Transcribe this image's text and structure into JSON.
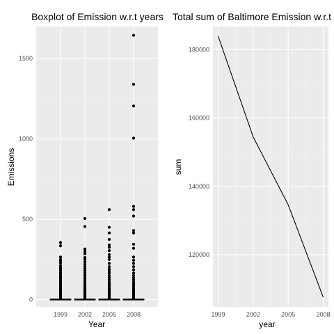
{
  "chart_data": [
    {
      "type": "box",
      "title": "Boxplot of Emission w.r.t years",
      "xlabel": "Year",
      "ylabel": "Emissions",
      "categories": [
        "1999",
        "2002",
        "2005",
        "2008"
      ],
      "ylim": [
        -45,
        1700
      ],
      "yticks": [
        0,
        500,
        1000,
        1500
      ],
      "ytick_labels": [
        "0",
        "500",
        "1000",
        "1500"
      ],
      "grid": true,
      "boxes": [
        {
          "label": "1999",
          "q1": 0,
          "median": 0.5,
          "q3": 3,
          "whisker_low": 0,
          "whisker_high": 7
        },
        {
          "label": "2002",
          "q1": 0,
          "median": 0.5,
          "q3": 3,
          "whisker_low": 0,
          "whisker_high": 7
        },
        {
          "label": "2005",
          "q1": 0,
          "median": 0.5,
          "q3": 3,
          "whisker_low": 0,
          "whisker_high": 7
        },
        {
          "label": "2008",
          "q1": 0,
          "median": 0.5,
          "q3": 3,
          "whisker_low": 0,
          "whisker_high": 7
        }
      ],
      "outliers": [
        [
          355,
          335,
          265,
          250,
          240,
          228,
          212,
          200,
          190,
          180,
          170,
          160,
          150,
          140,
          130,
          120,
          110,
          100,
          92,
          85,
          78,
          70,
          62,
          55,
          48,
          42,
          36,
          30,
          25,
          20,
          16,
          12,
          9
        ],
        [
          505,
          455,
          315,
          300,
          285,
          262,
          250,
          235,
          220,
          205,
          192,
          180,
          168,
          155,
          142,
          130,
          118,
          106,
          96,
          86,
          78,
          70,
          62,
          55,
          48,
          42,
          36,
          30,
          25,
          20,
          16,
          12,
          9
        ],
        [
          560,
          450,
          415,
          375,
          340,
          325,
          305,
          280,
          265,
          250,
          225,
          205,
          190,
          178,
          165,
          150,
          138,
          125,
          112,
          100,
          90,
          80,
          70,
          62,
          55,
          48,
          42,
          36,
          30,
          25,
          20,
          16,
          12,
          9
        ],
        [
          1645,
          1340,
          1205,
          1005,
          580,
          560,
          520,
          430,
          415,
          345,
          320,
          265,
          245,
          225,
          205,
          185,
          165,
          150,
          138,
          125,
          112,
          100,
          90,
          80,
          70,
          62,
          55,
          48,
          42,
          36,
          30,
          25,
          20,
          16,
          12,
          9
        ]
      ]
    },
    {
      "type": "line",
      "title": "Total sum of Baltimore Emission w.r.t",
      "xlabel": "year",
      "ylabel": "sum",
      "x": [
        1999,
        2002,
        2005,
        2008
      ],
      "y": [
        183930,
        154460,
        134620,
        107600
      ],
      "xlim": [
        1998.55,
        2008.45
      ],
      "ylim": [
        104750,
        186790
      ],
      "xticks": [
        1999,
        2002,
        2005,
        2008
      ],
      "xtick_labels": [
        "1999",
        "2002",
        "2005",
        "2008"
      ],
      "yticks": [
        120000,
        140000,
        160000,
        180000
      ],
      "ytick_labels": [
        "120000",
        "140000",
        "160000",
        "180000"
      ],
      "grid": true
    }
  ]
}
